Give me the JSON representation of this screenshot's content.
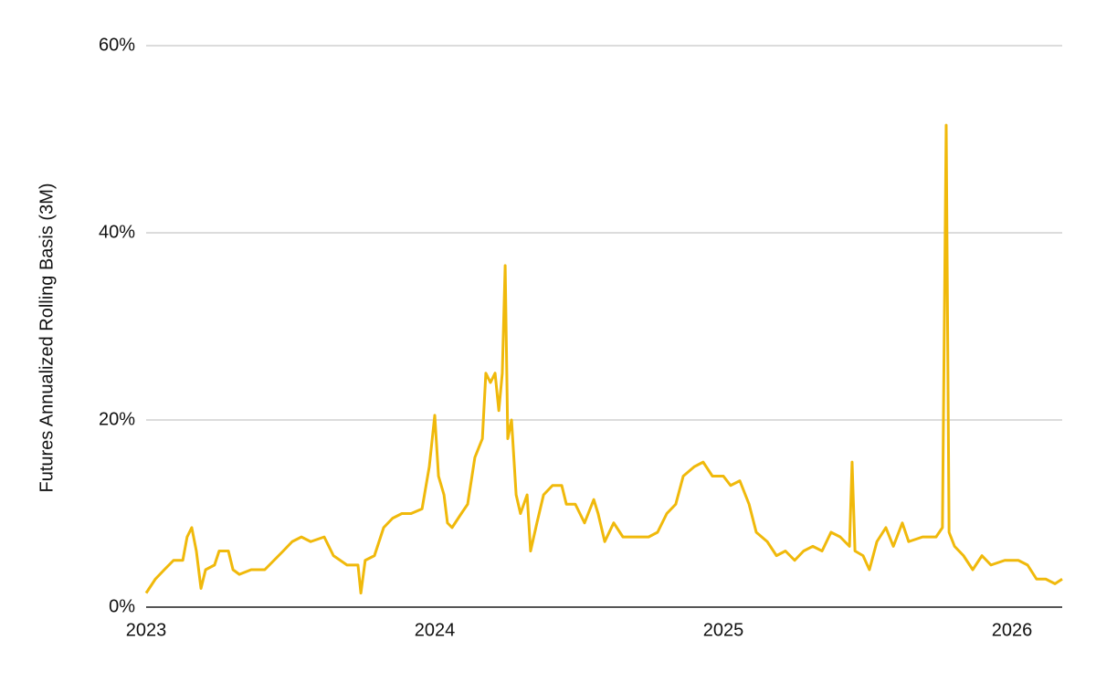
{
  "chart_data": {
    "type": "line",
    "y_label": "Futures Annualized Rolling Basis (3M)",
    "x": [
      2023.0,
      2023.032,
      2023.063,
      2023.095,
      2023.127,
      2023.142,
      2023.158,
      2023.174,
      2023.19,
      2023.206,
      2023.237,
      2023.253,
      2023.285,
      2023.301,
      2023.323,
      2023.364,
      2023.411,
      2023.443,
      2023.475,
      2023.506,
      2023.538,
      2023.57,
      2023.617,
      2023.649,
      2023.696,
      2023.734,
      2023.744,
      2023.759,
      2023.791,
      2023.823,
      2023.854,
      2023.886,
      2023.918,
      2023.956,
      2023.981,
      2024.0,
      2024.013,
      2024.032,
      2024.044,
      2024.06,
      2024.092,
      2024.114,
      2024.139,
      2024.165,
      2024.177,
      2024.193,
      2024.209,
      2024.222,
      2024.234,
      2024.244,
      2024.253,
      2024.266,
      2024.282,
      2024.297,
      2024.32,
      2024.332,
      2024.354,
      2024.377,
      2024.408,
      2024.44,
      2024.456,
      2024.487,
      2024.519,
      2024.551,
      2024.566,
      2024.589,
      2024.62,
      2024.652,
      2024.693,
      2024.741,
      2024.772,
      2024.804,
      2024.835,
      2024.861,
      2024.899,
      2024.93,
      2024.962,
      2025.0,
      2025.025,
      2025.057,
      2025.089,
      2025.114,
      2025.152,
      2025.184,
      2025.215,
      2025.247,
      2025.278,
      2025.31,
      2025.342,
      2025.373,
      2025.405,
      2025.437,
      2025.446,
      2025.456,
      2025.484,
      2025.506,
      2025.532,
      2025.563,
      2025.589,
      2025.62,
      2025.642,
      2025.69,
      2025.737,
      2025.759,
      2025.772,
      2025.782,
      2025.801,
      2025.832,
      2025.864,
      2025.896,
      2025.927,
      2025.975,
      2026.0,
      2026.022,
      2026.054,
      2026.085,
      2026.117,
      2026.149,
      2026.174
    ],
    "series": [
      {
        "color": "#f0b90b",
        "values": [
          1.5,
          3,
          4,
          5,
          5,
          7.5,
          8.5,
          6,
          2,
          4,
          4.5,
          6,
          6,
          4,
          3.5,
          4,
          4,
          5,
          6,
          7,
          7.5,
          7,
          7.5,
          5.5,
          4.5,
          4.5,
          1.5,
          5,
          5.5,
          8.5,
          9.5,
          10,
          10,
          10.5,
          15,
          20.5,
          14,
          12,
          9,
          8.5,
          10,
          11,
          16,
          18,
          25,
          24,
          25,
          21,
          25,
          36.5,
          18,
          20,
          12,
          10,
          12,
          6,
          9,
          12,
          13,
          13,
          11,
          11,
          9,
          11.5,
          10,
          7,
          9,
          7.5,
          7.5,
          7.5,
          8,
          10,
          11,
          14,
          15,
          15.5,
          14,
          14,
          13,
          13.5,
          11,
          8,
          7,
          5.5,
          6,
          5,
          6,
          6.5,
          6,
          8,
          7.5,
          6.5,
          15.5,
          6,
          5.5,
          4,
          7,
          8.5,
          6.5,
          9,
          7,
          7.5,
          7.5,
          8.5,
          51.5,
          8,
          6.5,
          5.5,
          4,
          5.5,
          4.5,
          5,
          5,
          5,
          4.5,
          3,
          3,
          2.5,
          3
        ]
      }
    ],
    "xlim": [
      2023,
      2026.174
    ],
    "xticks": [
      2023,
      2024,
      2025,
      2026
    ],
    "ylim": [
      0,
      60
    ],
    "yticks": [
      {
        "value": 0,
        "label": "0%"
      },
      {
        "value": 20,
        "label": "20%"
      },
      {
        "value": 40,
        "label": "40%"
      },
      {
        "value": 60,
        "label": "60%"
      }
    ],
    "grid": true
  }
}
